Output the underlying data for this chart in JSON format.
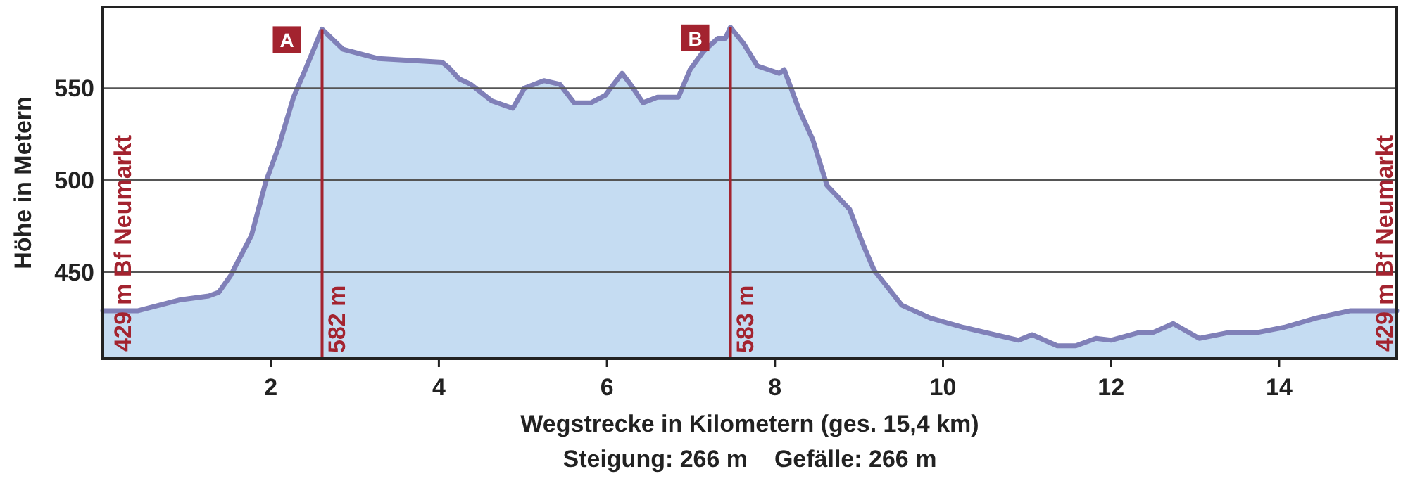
{
  "chart_data": {
    "type": "area",
    "xlabel": "Wegstrecke in Kilometern (ges. 15,4 km)",
    "ylabel": "Höhe in Metern",
    "xlim": [
      0,
      15.4
    ],
    "ylim": [
      403,
      594
    ],
    "xticks": [
      2,
      4,
      6,
      8,
      10,
      12,
      14
    ],
    "yticks": [
      450,
      500,
      550
    ],
    "grid": "y",
    "series": [
      {
        "color": "#8080b8",
        "x": [
          0,
          0.42,
          0.93,
          1.26,
          1.38,
          1.52,
          1.77,
          1.94,
          2.1,
          2.27,
          2.41,
          2.61,
          2.86,
          3.28,
          4.04,
          4.12,
          4.24,
          4.38,
          4.63,
          4.88,
          5.02,
          5.25,
          5.44,
          5.61,
          5.81,
          5.98,
          6.18,
          6.28,
          6.43,
          6.6,
          6.85,
          6.99,
          7.15,
          7.32,
          7.41,
          7.47,
          7.63,
          7.79,
          8.05,
          8.11,
          8.28,
          8.45,
          8.62,
          8.89,
          9.04,
          9.18,
          9.51,
          9.85,
          10.24,
          10.9,
          11.06,
          11.36,
          11.58,
          11.82,
          12.0,
          12.32,
          12.49,
          12.74,
          13.05,
          13.38,
          13.72,
          14.06,
          14.44,
          14.85,
          15.4
        ],
        "values": [
          429,
          429,
          435,
          437,
          439,
          448,
          470,
          499,
          519,
          545,
          560,
          582,
          571,
          566,
          564,
          561,
          555,
          552,
          543,
          539,
          550,
          554,
          552,
          542,
          542,
          546,
          558,
          552,
          542,
          545,
          545,
          560,
          570,
          577,
          577,
          583,
          574,
          562,
          558,
          560,
          539,
          522,
          497,
          484,
          466,
          451,
          432,
          425,
          420,
          413,
          416,
          410,
          410,
          414,
          413,
          417,
          417,
          422,
          414,
          417,
          417,
          420,
          425,
          429,
          429
        ]
      }
    ],
    "ref_lines": [
      {
        "axis": "x",
        "value": 2.61,
        "label": "582 m",
        "color": "#a3232f"
      },
      {
        "axis": "x",
        "value": 7.47,
        "label": "583 m",
        "color": "#a3232f"
      }
    ],
    "annotations": [
      {
        "text": "A",
        "x": 2.61,
        "y": 582
      },
      {
        "text": "B",
        "x": 7.47,
        "y": 583
      },
      {
        "text": "429 m  Bf Neumarkt",
        "x": 0,
        "y": 429
      },
      {
        "text": "429 m  Bf Neumarkt",
        "x": 15.4,
        "y": 429
      },
      "Steigung: 266 m    Gefälle: 266 m"
    ]
  }
}
